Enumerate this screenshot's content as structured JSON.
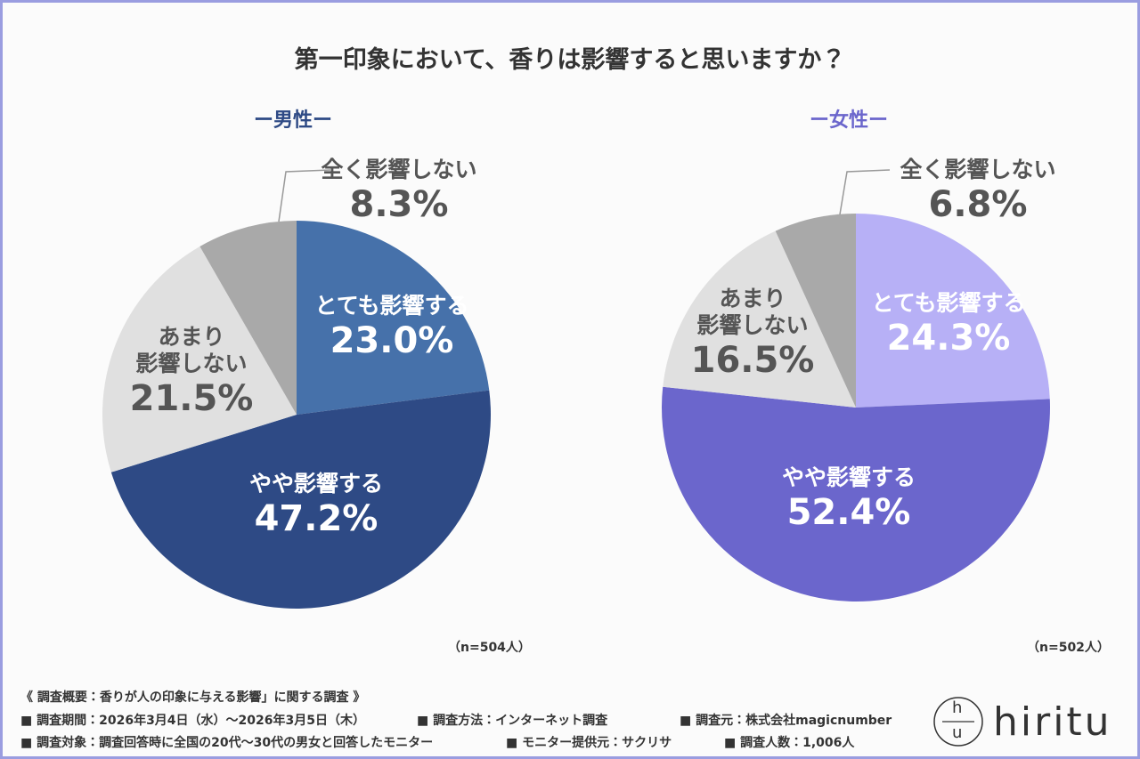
{
  "title": "第一印象において、香りは影響すると思いますか？",
  "chart_data": [
    {
      "type": "pie",
      "title": "ー男性ー",
      "title_color": "#2e4a85",
      "categories": [
        "とても影響する",
        "やや影響する",
        "あまり\n影響しない",
        "全く影響しない"
      ],
      "values": [
        23.0,
        47.2,
        21.5,
        8.3
      ],
      "value_labels": [
        "23.0%",
        "47.2%",
        "21.5%",
        "8.3%"
      ],
      "colors": [
        "#4671aa",
        "#2e4a85",
        "#e0e0e0",
        "#a9a9a9"
      ],
      "note": "（n=504人）"
    },
    {
      "type": "pie",
      "title": "ー女性ー",
      "title_color": "#6b66cc",
      "categories": [
        "とても影響する",
        "やや影響する",
        "あまり\n影響しない",
        "全く影響しない"
      ],
      "values": [
        24.3,
        52.4,
        16.5,
        6.8
      ],
      "value_labels": [
        "24.3%",
        "52.4%",
        "16.5%",
        "6.8%"
      ],
      "colors": [
        "#b7b0f6",
        "#6b66cc",
        "#e0e0e0",
        "#a9a9a9"
      ],
      "note": "（n=502人）"
    }
  ],
  "footer": {
    "heading": "《 調査概要：香りが人の印象に与える影響」に関する調査 》",
    "rows": [
      [
        "■ 調査期間：2026年3月4日（水）〜2026年3月5日（木）",
        "■ 調査方法：インターネット調査",
        "■ 調査元：株式会社magicnumber"
      ],
      [
        "■ 調査対象：調査回答時に全国の20代〜30代の男女と回答したモニター",
        "■ モニター提供元：サクリサ",
        "■ 調査人数：1,006人"
      ]
    ]
  },
  "logo": {
    "mark_top": "h",
    "mark_bottom": "u",
    "name": "hiritu"
  }
}
